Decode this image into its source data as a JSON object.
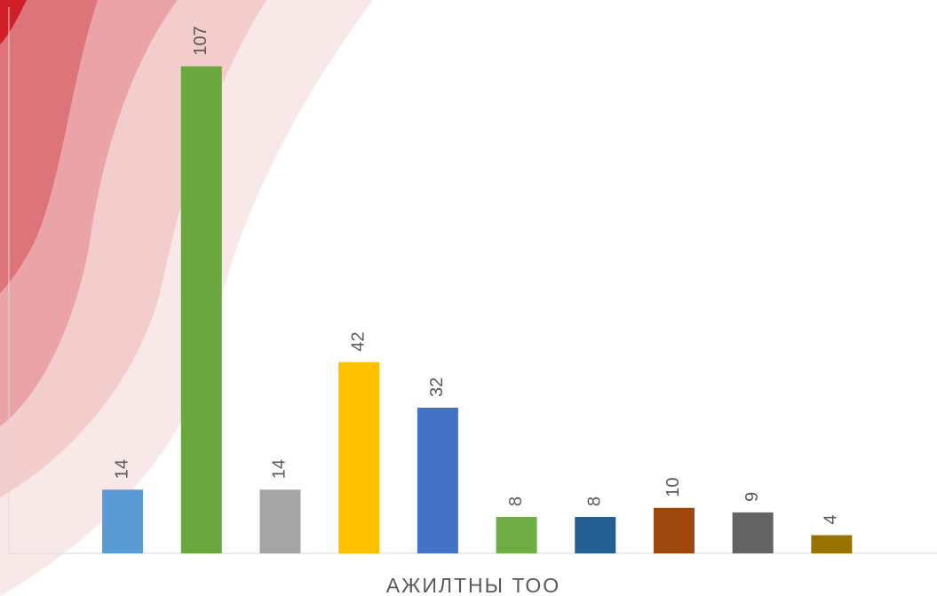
{
  "chart_data": {
    "type": "bar",
    "values": [
      14,
      107,
      14,
      42,
      32,
      8,
      8,
      10,
      9,
      4
    ],
    "colors": [
      "#5b9bd5",
      "#6aa83f",
      "#a5a5a5",
      "#ffc000",
      "#4472c4",
      "#70ad47",
      "#255e91",
      "#9e480e",
      "#636363",
      "#997300"
    ],
    "xlabel": "АЖИЛТНЫ ТОО",
    "ylim": [
      0,
      120
    ]
  }
}
